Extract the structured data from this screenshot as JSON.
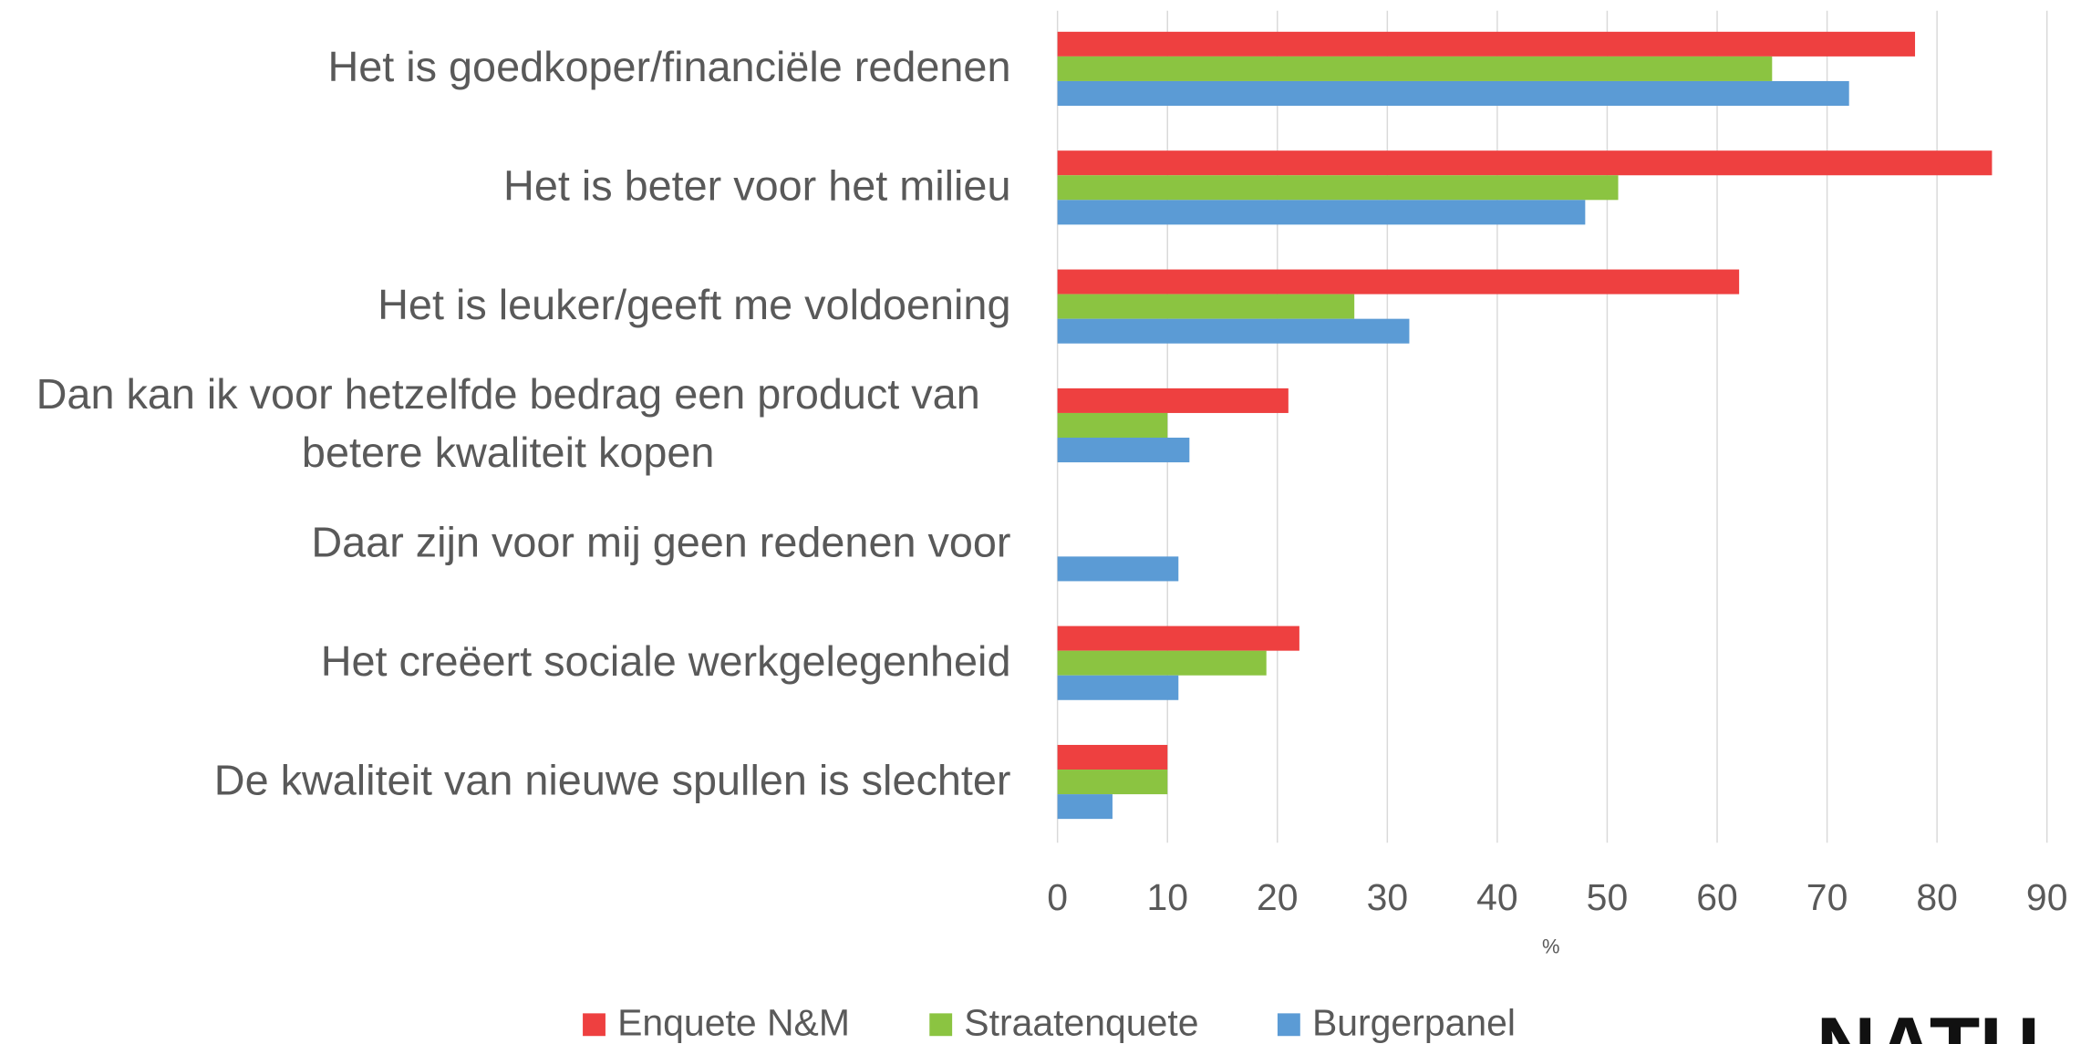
{
  "chart_data": {
    "type": "barh",
    "categories": [
      "Het is goedkoper/financiële redenen",
      "Het is beter voor het milieu",
      "Het is leuker/geeft me voldoening",
      "Dan kan ik voor hetzelfde bedrag een product van\nbetere kwaliteit kopen",
      "Daar zijn voor mij geen redenen voor",
      "Het creëert sociale werkgelegenheid",
      "De kwaliteit van nieuwe spullen is slechter"
    ],
    "series": [
      {
        "name": "Enquete N&M",
        "color": "#ee4040",
        "values": [
          78,
          85,
          62,
          21,
          null,
          22,
          10
        ]
      },
      {
        "name": "Straatenquete",
        "color": "#8bc441",
        "values": [
          65,
          51,
          27,
          10,
          null,
          19,
          10
        ]
      },
      {
        "name": "Burgerpanel",
        "color": "#5b9bd5",
        "values": [
          72,
          48,
          32,
          12,
          11,
          11,
          5
        ]
      }
    ],
    "xlabel": "%",
    "xlim": [
      0,
      90
    ],
    "xticks": [
      0,
      10,
      20,
      30,
      40,
      50,
      60,
      70,
      80,
      90
    ],
    "grid": true,
    "legend": "bottom",
    "logo": "NATU"
  }
}
